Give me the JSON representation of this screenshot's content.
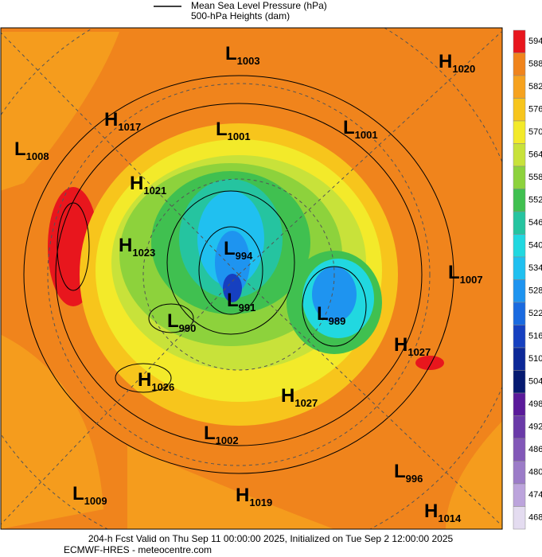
{
  "legend": {
    "pressure_label": "Mean Sea Level Pressure (hPa)",
    "height_label": "500-hPa Heights (dam)"
  },
  "centers": [
    {
      "letter": "L",
      "value": 1003
    },
    {
      "letter": "H",
      "value": 1020
    },
    {
      "letter": "H",
      "value": 1017
    },
    {
      "letter": "L",
      "value": 1001
    },
    {
      "letter": "L",
      "value": 1001
    },
    {
      "letter": "L",
      "value": 1008
    },
    {
      "letter": "H",
      "value": 1021
    },
    {
      "letter": "H",
      "value": 1023
    },
    {
      "letter": "L",
      "value": 994
    },
    {
      "letter": "L",
      "value": 1007
    },
    {
      "letter": "L",
      "value": 991
    },
    {
      "letter": "L",
      "value": 989
    },
    {
      "letter": "L",
      "value": 990
    },
    {
      "letter": "H",
      "value": 1027
    },
    {
      "letter": "H",
      "value": 1026
    },
    {
      "letter": "H",
      "value": 1027
    },
    {
      "letter": "L",
      "value": 1002
    },
    {
      "letter": "L",
      "value": 996
    },
    {
      "letter": "L",
      "value": 1009
    },
    {
      "letter": "H",
      "value": 1019
    },
    {
      "letter": "H",
      "value": 1014
    }
  ],
  "colorbar": [
    {
      "value": 594,
      "color": "#e8161d"
    },
    {
      "value": 588,
      "color": "#f0841c"
    },
    {
      "value": 582,
      "color": "#f6a21e"
    },
    {
      "value": 576,
      "color": "#f7c51c"
    },
    {
      "value": 570,
      "color": "#f3ea2a"
    },
    {
      "value": 564,
      "color": "#c8e23a"
    },
    {
      "value": 558,
      "color": "#8dd23c"
    },
    {
      "value": 552,
      "color": "#40c050"
    },
    {
      "value": 546,
      "color": "#25c4a0"
    },
    {
      "value": 540,
      "color": "#21d8e0"
    },
    {
      "value": 534,
      "color": "#20c0f0"
    },
    {
      "value": 528,
      "color": "#1e94f0"
    },
    {
      "value": 522,
      "color": "#1a6ae0"
    },
    {
      "value": 516,
      "color": "#1640c0"
    },
    {
      "value": 510,
      "color": "#0c2898"
    },
    {
      "value": 504,
      "color": "#061a70"
    },
    {
      "value": 498,
      "color": "#5a1a9a"
    },
    {
      "value": 492,
      "color": "#6a3aa8"
    },
    {
      "value": 486,
      "color": "#8258b8"
    },
    {
      "value": 480,
      "color": "#9c7cc8"
    },
    {
      "value": 474,
      "color": "#bca4dc"
    },
    {
      "value": 468,
      "color": "#e4dcf0"
    }
  ],
  "footer": {
    "line1": "204-h Fcst Valid on Thu Sep 11 00:00:00 2025, Initialized on Tue Sep  2 12:00:00 2025",
    "line2": "ECMWF-HRES  - meteocentre.com"
  }
}
